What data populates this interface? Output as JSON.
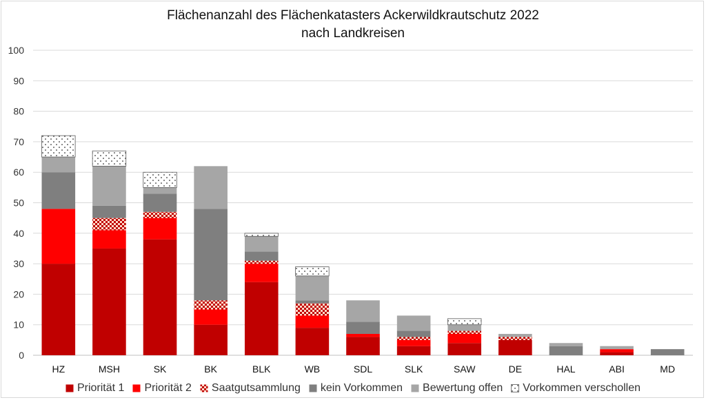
{
  "chart_data": {
    "type": "bar",
    "stacked": true,
    "title": "Flächenanzahl des Flächenkatasters Ackerwildkrautschutz 2022",
    "subtitle": "nach Landkreisen",
    "xlabel": "",
    "ylabel": "",
    "ylim": [
      0,
      100
    ],
    "yticks": [
      0,
      10,
      20,
      30,
      40,
      50,
      60,
      70,
      80,
      90,
      100
    ],
    "grid": true,
    "legend_position": "bottom",
    "categories": [
      "HZ",
      "MSH",
      "SK",
      "BK",
      "BLK",
      "WB",
      "SDL",
      "SLK",
      "SAW",
      "DE",
      "HAL",
      "ABI",
      "MD"
    ],
    "series": [
      {
        "name": "Priorität 1",
        "color": "#c00000",
        "pattern": "solid",
        "values": [
          30,
          35,
          38,
          10,
          24,
          9,
          6,
          3,
          4,
          5,
          0,
          1,
          0
        ]
      },
      {
        "name": "Priorität 2",
        "color": "#ff0000",
        "pattern": "solid",
        "values": [
          18,
          6,
          7,
          5,
          6,
          4,
          1,
          2,
          3,
          0,
          0,
          1,
          0
        ]
      },
      {
        "name": "Saatgutsammlung",
        "color": "#c00000",
        "pattern": "checker",
        "values": [
          0,
          4,
          2,
          3,
          1,
          4,
          0,
          1,
          1,
          1,
          0,
          0,
          0
        ]
      },
      {
        "name": "kein Vorkommen",
        "color": "#7f7f7f",
        "pattern": "solid",
        "values": [
          12,
          4,
          6,
          30,
          3,
          1,
          4,
          2,
          0,
          0,
          3,
          0,
          2
        ]
      },
      {
        "name": "Bewertung offen",
        "color": "#a6a6a6",
        "pattern": "solid",
        "values": [
          5,
          13,
          2,
          14,
          5,
          8,
          7,
          5,
          2,
          1,
          1,
          1,
          0
        ]
      },
      {
        "name": "Vorkommen verschollen",
        "color": "#ffffff",
        "pattern": "dots",
        "values": [
          7,
          5,
          5,
          0,
          1,
          3,
          0,
          0,
          2,
          0,
          0,
          0,
          0
        ]
      }
    ]
  }
}
